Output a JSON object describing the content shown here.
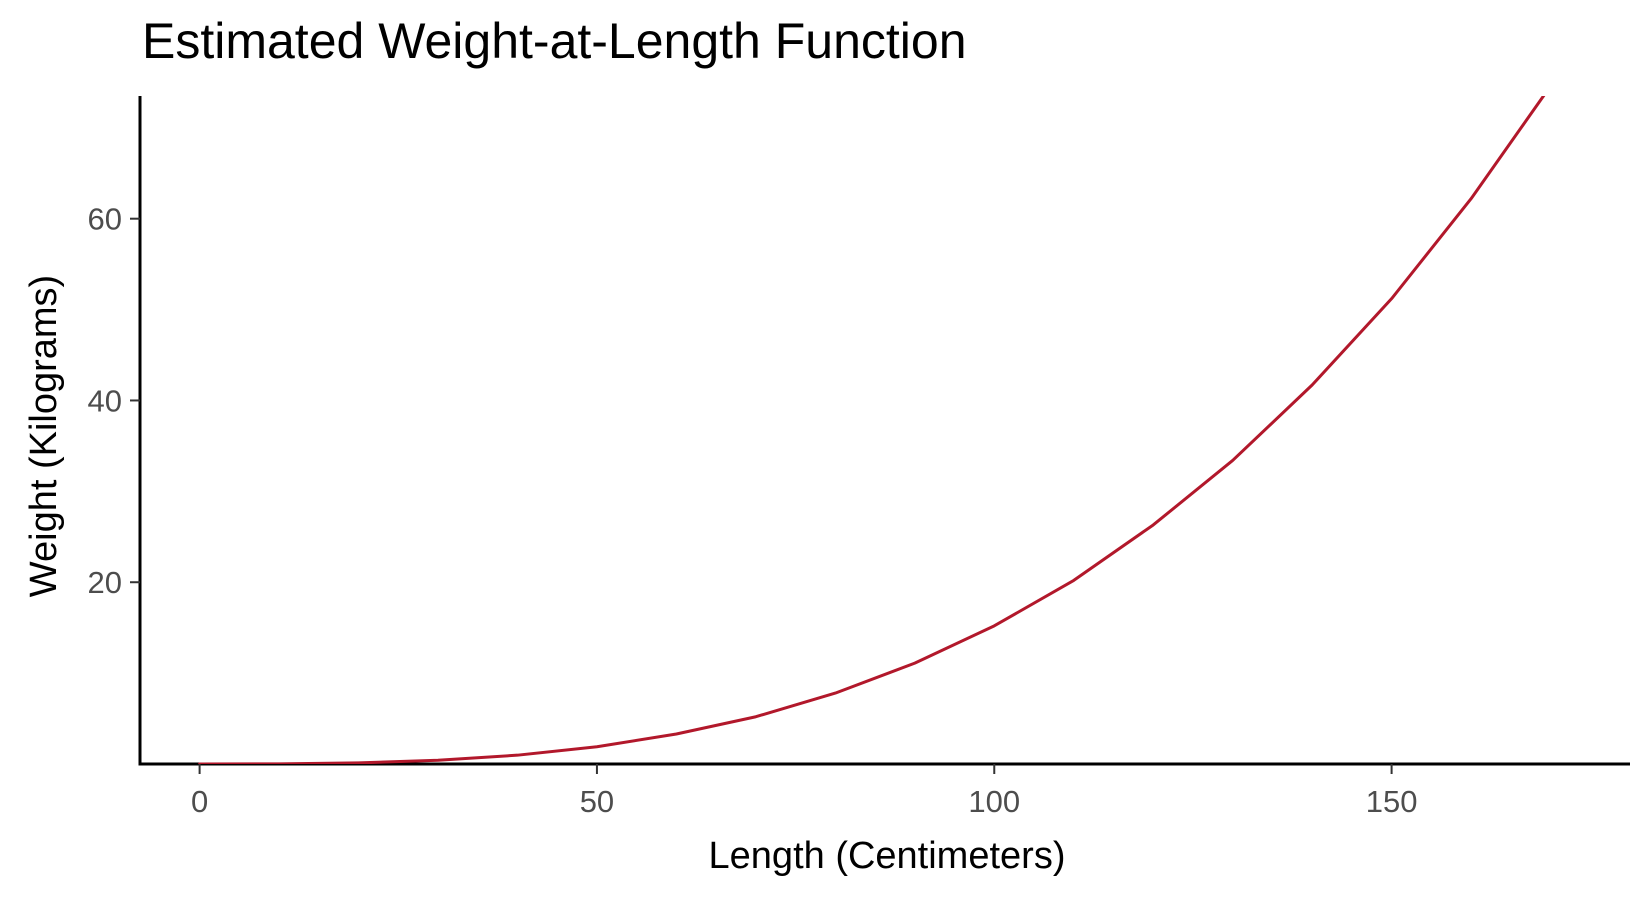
{
  "chart_data": {
    "type": "line",
    "title": "Estimated Weight-at-Length Function",
    "xlabel": "Length (Centimeters)",
    "ylabel": "Weight (Kilograms)",
    "xlim": [
      -7.5,
      180
    ],
    "ylim": [
      0,
      73.5
    ],
    "x_ticks": [
      0,
      50,
      100,
      150
    ],
    "y_ticks": [
      20,
      40,
      60
    ],
    "grid": false,
    "legend": "none",
    "line_color": "#b2182b",
    "series": [
      {
        "x": [
          0,
          10,
          20,
          30,
          40,
          50,
          60,
          70,
          80,
          90,
          100,
          110,
          120,
          130,
          140,
          150,
          160,
          170
        ],
        "values": [
          0.0,
          0.014,
          0.12,
          0.41,
          0.97,
          1.9,
          3.3,
          5.2,
          7.8,
          11.1,
          15.2,
          20.2,
          26.3,
          33.4,
          41.7,
          51.2,
          62.2,
          74.6
        ]
      }
    ]
  }
}
